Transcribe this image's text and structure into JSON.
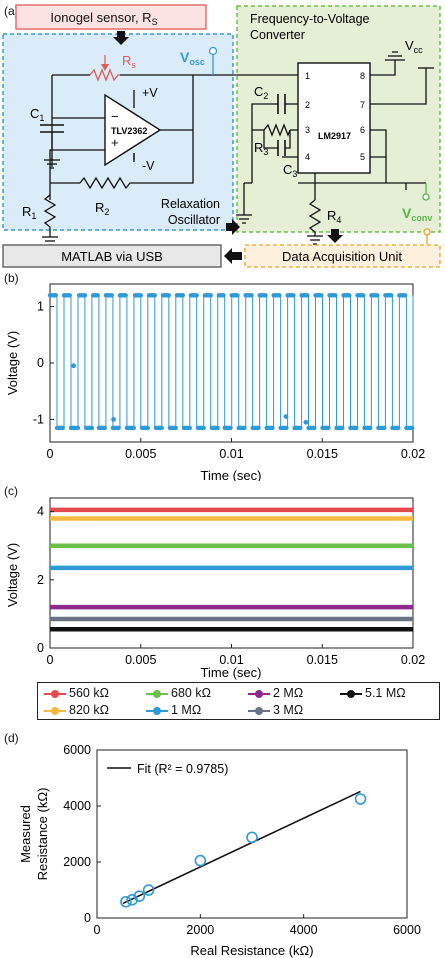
{
  "panel_labels": {
    "a": "(a)",
    "b": "(b)",
    "c": "(c)",
    "d": "(d)"
  },
  "circuit": {
    "ionogel_box": "Ionogel sensor, R",
    "ionogel_sub": "S",
    "fvc_title_line1": "Frequency-to-Voltage",
    "fvc_title_line2": "Converter",
    "matlab_box": "MATLAB via USB",
    "daq_box": "Data Acquisition Unit",
    "relax_line1": "Relaxation",
    "relax_line2": "Oscillator",
    "opamp_label": "TLV2362",
    "ic_label": "LM2917",
    "plus_v": "+V",
    "minus_v": "-V",
    "vosc": "V",
    "vosc_sub": "osc",
    "vconv": "V",
    "vconv_sub": "conv",
    "vcc": "V",
    "vcc_sub": "cc",
    "rs": "R",
    "rs_sub": "s",
    "c1": "C",
    "c1_sub": "1",
    "c2": "C",
    "c2_sub": "2",
    "c3": "C",
    "c3_sub": "3",
    "r1": "R",
    "r1_sub": "1",
    "r2": "R",
    "r2_sub": "2",
    "r3": "R",
    "r3_sub": "3",
    "r4": "R",
    "r4_sub": "4",
    "pins": [
      "1",
      "2",
      "3",
      "4",
      "8",
      "7",
      "6",
      "5"
    ],
    "colors": {
      "sensor": "#e05a5a",
      "oscillator_bg": "#d9ecf8",
      "converter_bg": "#e4efd6",
      "oscillator_border": "#3a9ad9",
      "converter_border": "#6cc04a",
      "daq_border": "#f0a020",
      "vconv": "#5ab54a",
      "vosc": "#3a9ad9"
    }
  },
  "chart_data": [
    {
      "type": "line",
      "panel": "b",
      "xlabel": "Time (sec)",
      "ylabel": "Voltage (V)",
      "xlim": [
        0,
        0.02
      ],
      "ylim": [
        -1.4,
        1.4
      ],
      "xticks": [
        "0",
        "0.005",
        "0.01",
        "0.015",
        "0.02"
      ],
      "yticks": [
        "-1",
        "0",
        "1"
      ],
      "series": [
        {
          "color": "#2f9ad6",
          "high": 1.2,
          "low": -1.15,
          "period": 0.00077,
          "duty": 0.5
        }
      ],
      "outliers": [
        {
          "x": 0.0013,
          "y": -0.05
        },
        {
          "x": 0.0035,
          "y": -1.0
        },
        {
          "x": 0.013,
          "y": -0.95
        },
        {
          "x": 0.0141,
          "y": -1.05
        }
      ]
    },
    {
      "type": "line",
      "panel": "c",
      "xlabel": "Time (sec)",
      "ylabel": "Voltage (V)",
      "xlim": [
        0,
        0.02
      ],
      "ylim": [
        0,
        4.4
      ],
      "xticks": [
        "0",
        "0.005",
        "0.01",
        "0.015",
        "0.02"
      ],
      "yticks": [
        "0",
        "2",
        "4"
      ],
      "series": [
        {
          "name": "560 kΩ",
          "value": 4.05,
          "color": "#e5484d"
        },
        {
          "name": "820 kΩ",
          "value": 3.8,
          "color": "#f5b942"
        },
        {
          "name": "680 kΩ",
          "value": 3.0,
          "color": "#6cc04a"
        },
        {
          "name": "1 MΩ",
          "value": 2.35,
          "color": "#2f9ad6"
        },
        {
          "name": "2 MΩ",
          "value": 1.2,
          "color": "#8e2a8a"
        },
        {
          "name": "3 MΩ",
          "value": 0.85,
          "color": "#6b7384"
        },
        {
          "name": "5.1 MΩ",
          "value": 0.55,
          "color": "#111111"
        }
      ]
    },
    {
      "type": "scatter",
      "panel": "d",
      "xlabel": "Real Resistance (kΩ)",
      "ylabel_line1": "Measured",
      "ylabel_line2": "Resistance (kΩ)",
      "xlim": [
        0,
        6000
      ],
      "ylim": [
        0,
        6000
      ],
      "xticks": [
        "0",
        "2000",
        "4000",
        "6000"
      ],
      "yticks": [
        "0",
        "2000",
        "4000",
        "6000"
      ],
      "legend": "Fit (R² = 0.9785)",
      "points": [
        {
          "x": 560,
          "y": 580
        },
        {
          "x": 680,
          "y": 650
        },
        {
          "x": 820,
          "y": 780
        },
        {
          "x": 1000,
          "y": 1000
        },
        {
          "x": 2000,
          "y": 2050
        },
        {
          "x": 3000,
          "y": 2880
        },
        {
          "x": 5100,
          "y": 4250
        }
      ],
      "fit": {
        "x": [
          500,
          5100
        ],
        "y": [
          520,
          4520
        ]
      },
      "point_color": "#2f9ad6"
    }
  ]
}
